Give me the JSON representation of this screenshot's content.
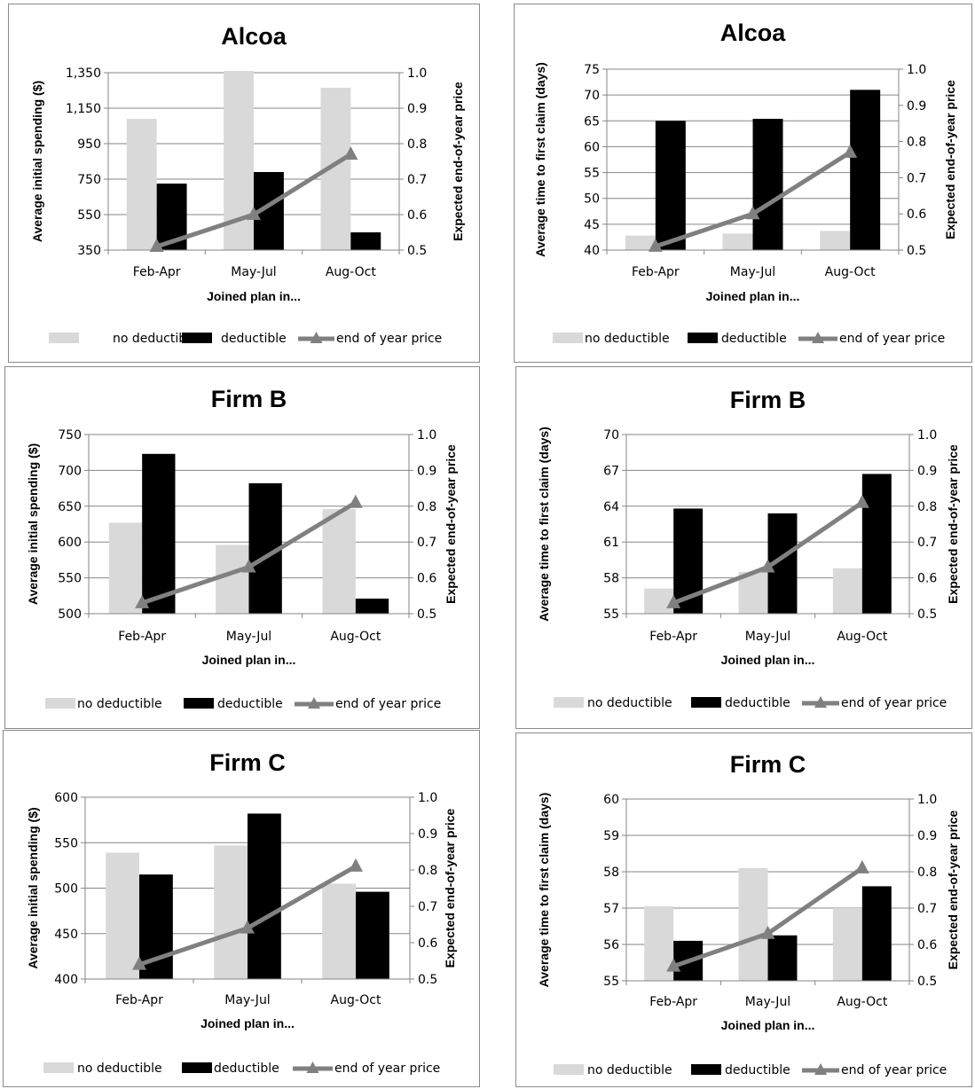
{
  "legend": {
    "no_deductible": "no deductible",
    "deductible": "deductible",
    "end_price": "end of year price"
  },
  "colors": {
    "no_deductible": "#d9d9d9",
    "deductible": "#000000",
    "end_price": "#808080",
    "axis": "#868686"
  },
  "chart_data": [
    {
      "type": "bar",
      "title": "Alcoa",
      "categories": [
        "Feb-Apr",
        "May-Jul",
        "Aug-Oct"
      ],
      "xlabel": "Joined plan in...",
      "ylabel": "Average initial spending ($)",
      "y2label": "Expected end-of-year price",
      "ylim": [
        350,
        1350
      ],
      "yticks": [
        350,
        550,
        750,
        950,
        1150,
        1350
      ],
      "ytick_labels": [
        "350",
        "550",
        "750",
        "950",
        "1,150",
        "1,350"
      ],
      "y2lim": [
        0.5,
        1.0
      ],
      "y2ticks": [
        "0.5",
        "0.6",
        "0.7",
        "0.8",
        "0.9",
        "1.0"
      ],
      "grid": true,
      "legend_position": "bottom",
      "series": [
        {
          "name": "no deductible",
          "axis": "left",
          "values": [
            1090,
            1400,
            1265
          ]
        },
        {
          "name": "deductible",
          "axis": "left",
          "values": [
            725,
            790,
            450
          ]
        },
        {
          "name": "end of year price",
          "axis": "right",
          "type": "line",
          "values": [
            0.51,
            0.6,
            0.77
          ]
        }
      ]
    },
    {
      "type": "bar",
      "title": "Alcoa",
      "categories": [
        "Feb-Apr",
        "May-Jul",
        "Aug-Oct"
      ],
      "xlabel": "Joined plan in...",
      "ylabel": "Average time to first claim (days)",
      "y2label": "Expected end-of-year price",
      "ylim": [
        40,
        75
      ],
      "yticks": [
        40,
        45,
        50,
        55,
        60,
        65,
        70,
        75
      ],
      "ytick_labels": [
        "40",
        "45",
        "50",
        "55",
        "60",
        "65",
        "70",
        "75"
      ],
      "y2lim": [
        0.5,
        1.0
      ],
      "y2ticks": [
        "0.5",
        "0.6",
        "0.7",
        "0.8",
        "0.9",
        "1.0"
      ],
      "grid": true,
      "legend_position": "bottom",
      "series": [
        {
          "name": "no deductible",
          "axis": "left",
          "values": [
            42.8,
            43.2,
            43.7
          ]
        },
        {
          "name": "deductible",
          "axis": "left",
          "values": [
            65,
            65.4,
            71
          ]
        },
        {
          "name": "end of year price",
          "axis": "right",
          "type": "line",
          "values": [
            0.51,
            0.6,
            0.77
          ]
        }
      ]
    },
    {
      "type": "bar",
      "title": "Firm B",
      "categories": [
        "Feb-Apr",
        "May-Jul",
        "Aug-Oct"
      ],
      "xlabel": "Joined plan in...",
      "ylabel": "Average initial spending ($)",
      "y2label": "Expected end-of-year price",
      "ylim": [
        500,
        750
      ],
      "yticks": [
        500,
        550,
        600,
        650,
        700,
        750
      ],
      "ytick_labels": [
        "500",
        "550",
        "600",
        "650",
        "700",
        "750"
      ],
      "y2lim": [
        0.5,
        1.0
      ],
      "y2ticks": [
        "0.5",
        "0.6",
        "0.7",
        "0.8",
        "0.9",
        "1.0"
      ],
      "grid": true,
      "legend_position": "bottom",
      "series": [
        {
          "name": "no deductible",
          "axis": "left",
          "values": [
            627,
            596,
            646
          ]
        },
        {
          "name": "deductible",
          "axis": "left",
          "values": [
            723,
            682,
            521
          ]
        },
        {
          "name": "end of year price",
          "axis": "right",
          "type": "line",
          "values": [
            0.53,
            0.63,
            0.81
          ]
        }
      ]
    },
    {
      "type": "bar",
      "title": "Firm B",
      "categories": [
        "Feb-Apr",
        "May-Jul",
        "Aug-Oct"
      ],
      "xlabel": "Joined plan in...",
      "ylabel": "Average time to first claim (days)",
      "y2label": "Expected end-of-year price",
      "ylim": [
        55,
        70
      ],
      "yticks": [
        55,
        58,
        61,
        64,
        67,
        70
      ],
      "ytick_labels": [
        "55",
        "58",
        "61",
        "64",
        "67",
        "70"
      ],
      "y2lim": [
        0.5,
        1.0
      ],
      "y2ticks": [
        "0.5",
        "0.6",
        "0.7",
        "0.8",
        "0.9",
        "1.0"
      ],
      "grid": true,
      "legend_position": "bottom",
      "series": [
        {
          "name": "no deductible",
          "axis": "left",
          "values": [
            57.1,
            58.5,
            58.8
          ]
        },
        {
          "name": "deductible",
          "axis": "left",
          "values": [
            63.8,
            63.4,
            66.7
          ]
        },
        {
          "name": "end of year price",
          "axis": "right",
          "type": "line",
          "values": [
            0.53,
            0.63,
            0.81
          ]
        }
      ]
    },
    {
      "type": "bar",
      "title": "Firm C",
      "categories": [
        "Feb-Apr",
        "May-Jul",
        "Aug-Oct"
      ],
      "xlabel": "Joined plan in...",
      "ylabel": "Average initial spending ($)",
      "y2label": "Expected end-of-year price",
      "ylim": [
        400,
        600
      ],
      "yticks": [
        400,
        450,
        500,
        550,
        600
      ],
      "ytick_labels": [
        "400",
        "450",
        "500",
        "550",
        "600"
      ],
      "y2lim": [
        0.5,
        1.0
      ],
      "y2ticks": [
        "0.5",
        "0.6",
        "0.7",
        "0.8",
        "0.9",
        "1.0"
      ],
      "grid": true,
      "legend_position": "bottom",
      "series": [
        {
          "name": "no deductible",
          "axis": "left",
          "values": [
            539,
            547,
            505
          ]
        },
        {
          "name": "deductible",
          "axis": "left",
          "values": [
            515,
            582,
            496
          ]
        },
        {
          "name": "end of year price",
          "axis": "right",
          "type": "line",
          "values": [
            0.54,
            0.64,
            0.81
          ]
        }
      ]
    },
    {
      "type": "bar",
      "title": "Firm C",
      "categories": [
        "Feb-Apr",
        "May-Jul",
        "Aug-Oct"
      ],
      "xlabel": "Joined plan in...",
      "ylabel": "Average time to first claim (days)",
      "y2label": "Expected end-of-year price",
      "ylim": [
        55,
        60
      ],
      "yticks": [
        55,
        56,
        57,
        58,
        59,
        60
      ],
      "ytick_labels": [
        "55",
        "56",
        "57",
        "58",
        "59",
        "60"
      ],
      "y2lim": [
        0.5,
        1.0
      ],
      "y2ticks": [
        "0.5",
        "0.6",
        "0.7",
        "0.8",
        "0.9",
        "1.0"
      ],
      "grid": true,
      "legend_position": "bottom",
      "series": [
        {
          "name": "no deductible",
          "axis": "left",
          "values": [
            57.05,
            58.1,
            57.0
          ]
        },
        {
          "name": "deductible",
          "axis": "left",
          "values": [
            56.1,
            56.25,
            57.6
          ]
        },
        {
          "name": "end of year price",
          "axis": "right",
          "type": "line",
          "values": [
            0.54,
            0.63,
            0.81
          ]
        }
      ]
    }
  ]
}
